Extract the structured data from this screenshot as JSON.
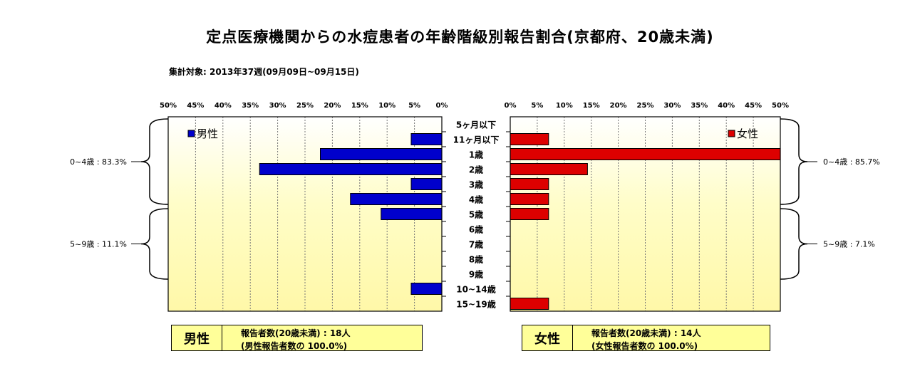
{
  "title": "定点医療機関からの水痘患者の年齢階級別報告割合(京都府、20歳未満)",
  "subtitle": "集計対象: 2013年37週(09月09日~09月15日)",
  "chart_data": {
    "type": "bar",
    "orientation": "horizontal",
    "layout": "population-pyramid",
    "categories": [
      "5ヶ月以下",
      "11ヶ月以下",
      "1歳",
      "2歳",
      "3歳",
      "4歳",
      "5歳",
      "6歳",
      "7歳",
      "8歳",
      "9歳",
      "10~14歳",
      "15~19歳"
    ],
    "xlim": [
      0,
      50
    ],
    "ticks": [
      "0%",
      "5%",
      "10%",
      "15%",
      "20%",
      "25%",
      "30%",
      "35%",
      "40%",
      "45%",
      "50%"
    ],
    "series": [
      {
        "name": "男性",
        "side": "left",
        "color": "#0000cc",
        "values": [
          0,
          5.6,
          22.2,
          33.3,
          5.6,
          16.7,
          11.1,
          0,
          0,
          0,
          0,
          5.6,
          0
        ]
      },
      {
        "name": "女性",
        "side": "right",
        "color": "#dd0000",
        "values": [
          0,
          7.1,
          50.0,
          14.3,
          7.1,
          7.1,
          7.1,
          0,
          0,
          0,
          0,
          0,
          7.1
        ]
      }
    ],
    "groups": {
      "male": [
        {
          "label": "0~4歳 : 83.3%"
        },
        {
          "label": "5~9歳 : 11.1%"
        }
      ],
      "female": [
        {
          "label": "0~4歳 : 85.7%"
        },
        {
          "label": "5~9歳 : 7.1%"
        }
      ]
    },
    "grid": true
  },
  "summary": {
    "male": {
      "sex": "男性",
      "line1": "報告者数(20歳未満) : 18人",
      "line2": "(男性報告者数の 100.0%)"
    },
    "female": {
      "sex": "女性",
      "line1": "報告者数(20歳未満) : 14人",
      "line2": "(女性報告者数の 100.0%)"
    }
  }
}
